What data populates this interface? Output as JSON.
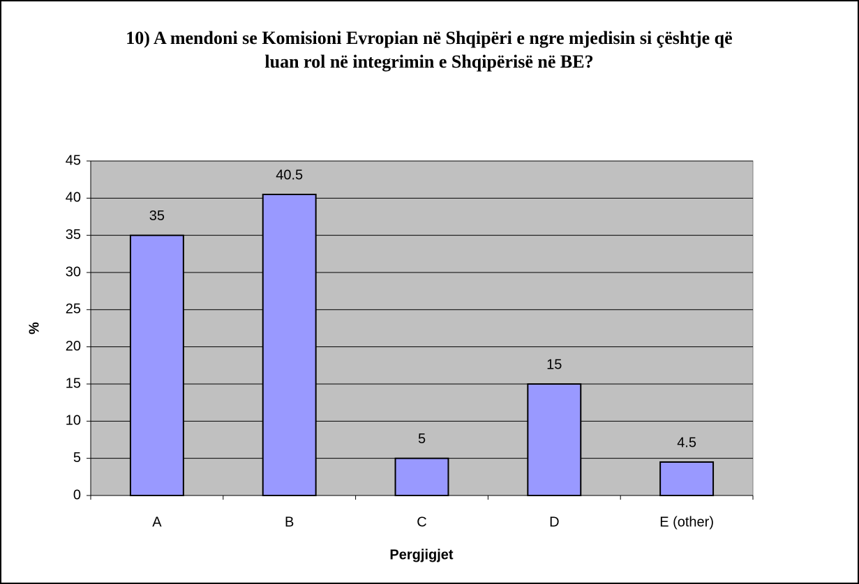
{
  "chart_data": {
    "type": "bar",
    "title": "10) A mendoni se Komisioni Evropian në Shqipëri e ngre mjedisin si çështje që luan rol në integrimin e Shqipërisë në BE?",
    "x_label": "Pergjigjet",
    "y_label": "%",
    "categories": [
      "A",
      "B",
      "C",
      "D",
      "E (other)"
    ],
    "values": [
      35,
      40.5,
      5,
      15,
      4.5
    ],
    "color": "#9999ff",
    "ylim": [
      0,
      45
    ],
    "yticks": [
      0,
      5,
      10,
      15,
      20,
      25,
      30,
      35,
      40,
      45
    ],
    "grid": true
  }
}
